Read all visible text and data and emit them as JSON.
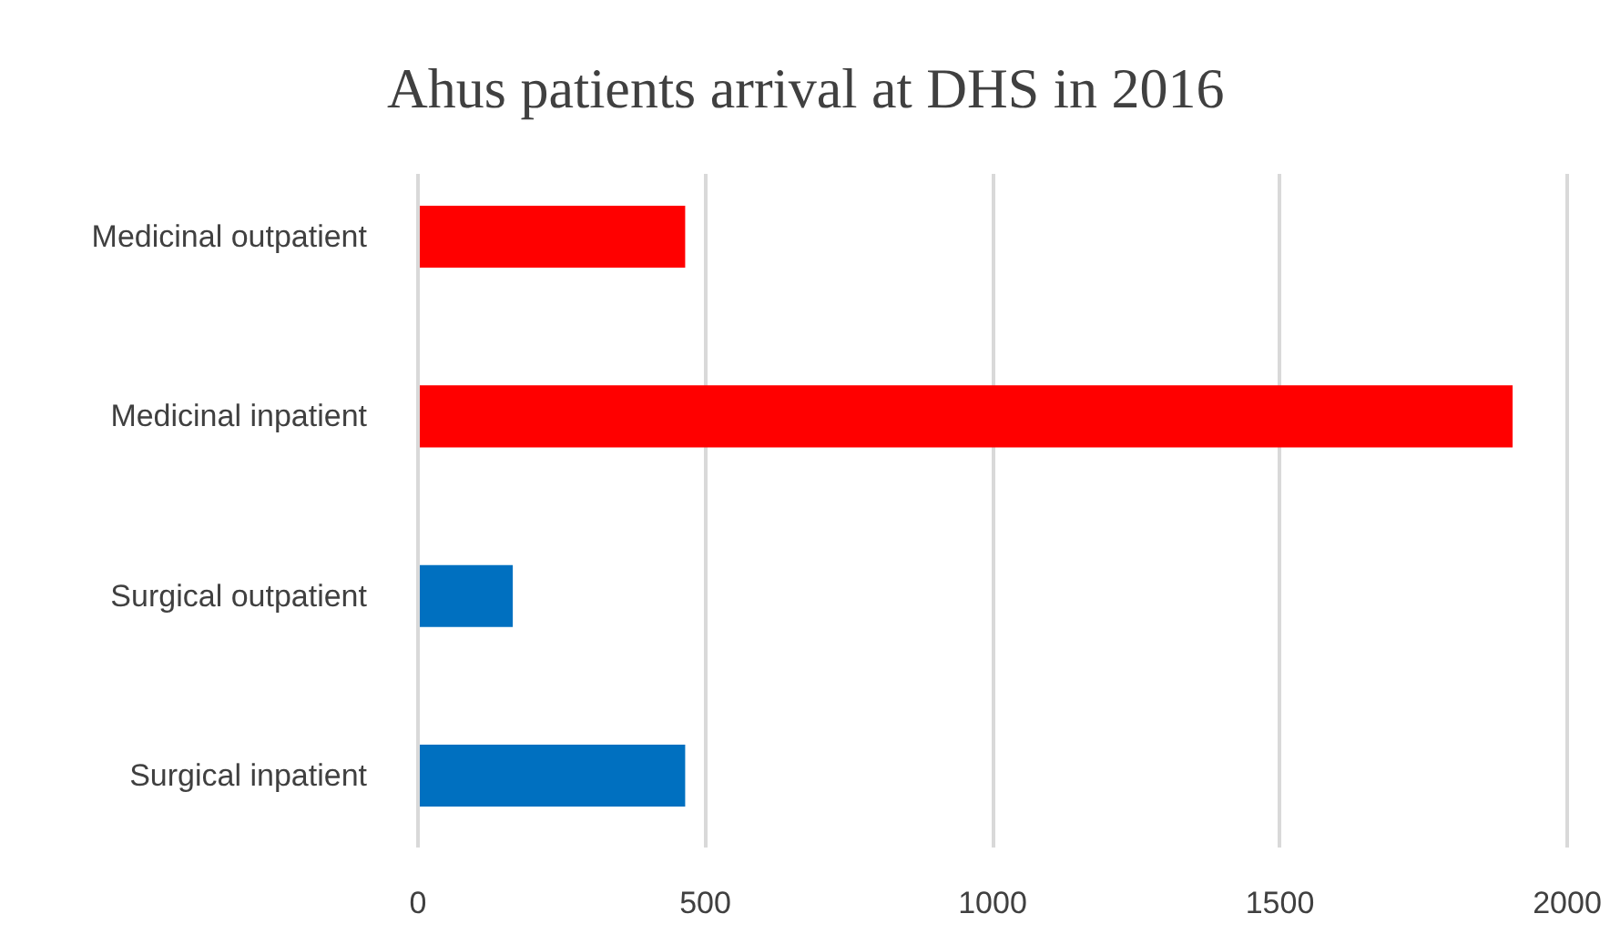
{
  "chart_data": {
    "type": "bar",
    "orientation": "horizontal",
    "title": "Ahus patients arrival at DHS in 2016",
    "categories": [
      "Medicinal outpatient",
      "Medicinal inpatient",
      "Surgical outpatient",
      "Surgical inpatient"
    ],
    "values": [
      465,
      1905,
      165,
      465
    ],
    "colors": [
      "#ff0000",
      "#ff0000",
      "#0070c0",
      "#0070c0"
    ],
    "xlim": [
      0,
      2000
    ],
    "xticks": [
      0,
      500,
      1000,
      1500,
      2000
    ],
    "grid": "x"
  }
}
